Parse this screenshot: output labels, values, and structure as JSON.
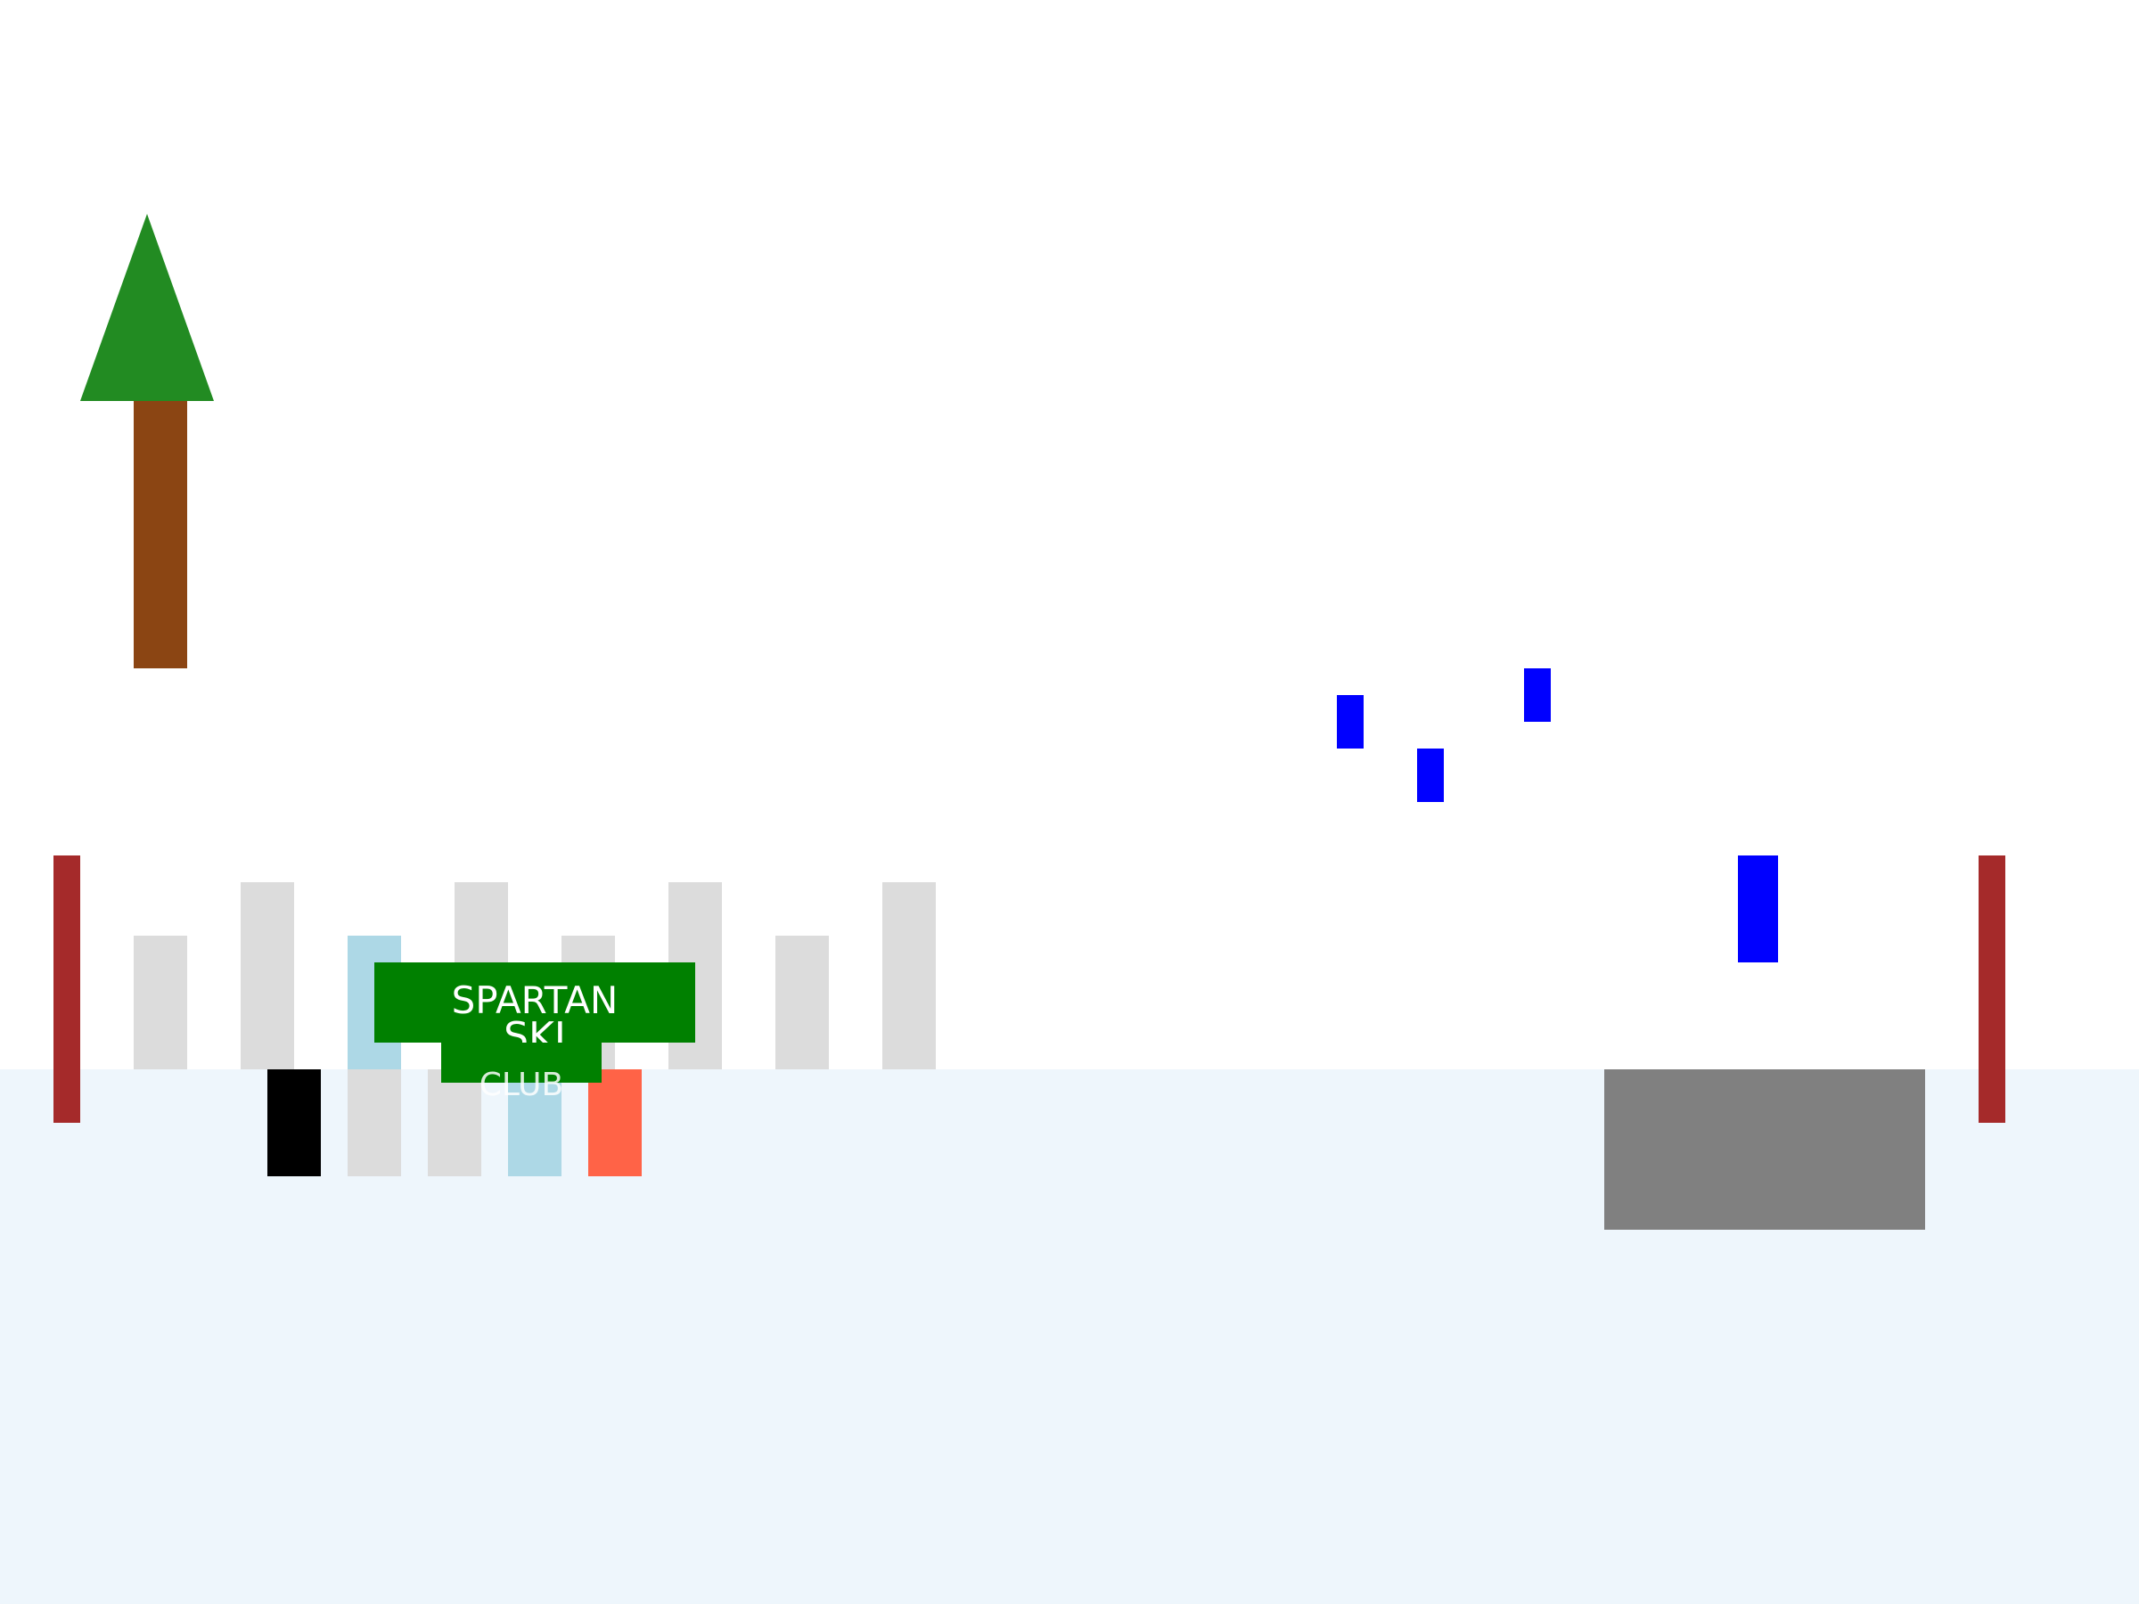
{
  "scene": {
    "name": "ski-area",
    "sign": {
      "lines": [
        "SPARTAN",
        "SKI",
        "CLUB"
      ]
    },
    "colors": {
      "sky": "#ffffff",
      "snow_ground": "#eef6fc",
      "tree_foliage": "#228b22",
      "tree_trunk": "#8b4513",
      "gate_pole": "#a52a2a",
      "fence_post": "#dcdcdc",
      "fence_post_highlight": "#add8e6",
      "sign_board": "#008000",
      "sign_text": "#ffffff",
      "skier_black": "#000000",
      "skier_coral": "#ff6347",
      "skier_light_blue": "#add8e6",
      "flying_blue": "#0000ff",
      "rock": "#808080"
    },
    "objects": [
      "tree-icon",
      "gate-pole-left-icon",
      "gate-pole-right-icon",
      "fence",
      "club-sign",
      "skier-group",
      "blue-bird-icons",
      "blue-skier-icon",
      "rock-block-icon"
    ]
  }
}
